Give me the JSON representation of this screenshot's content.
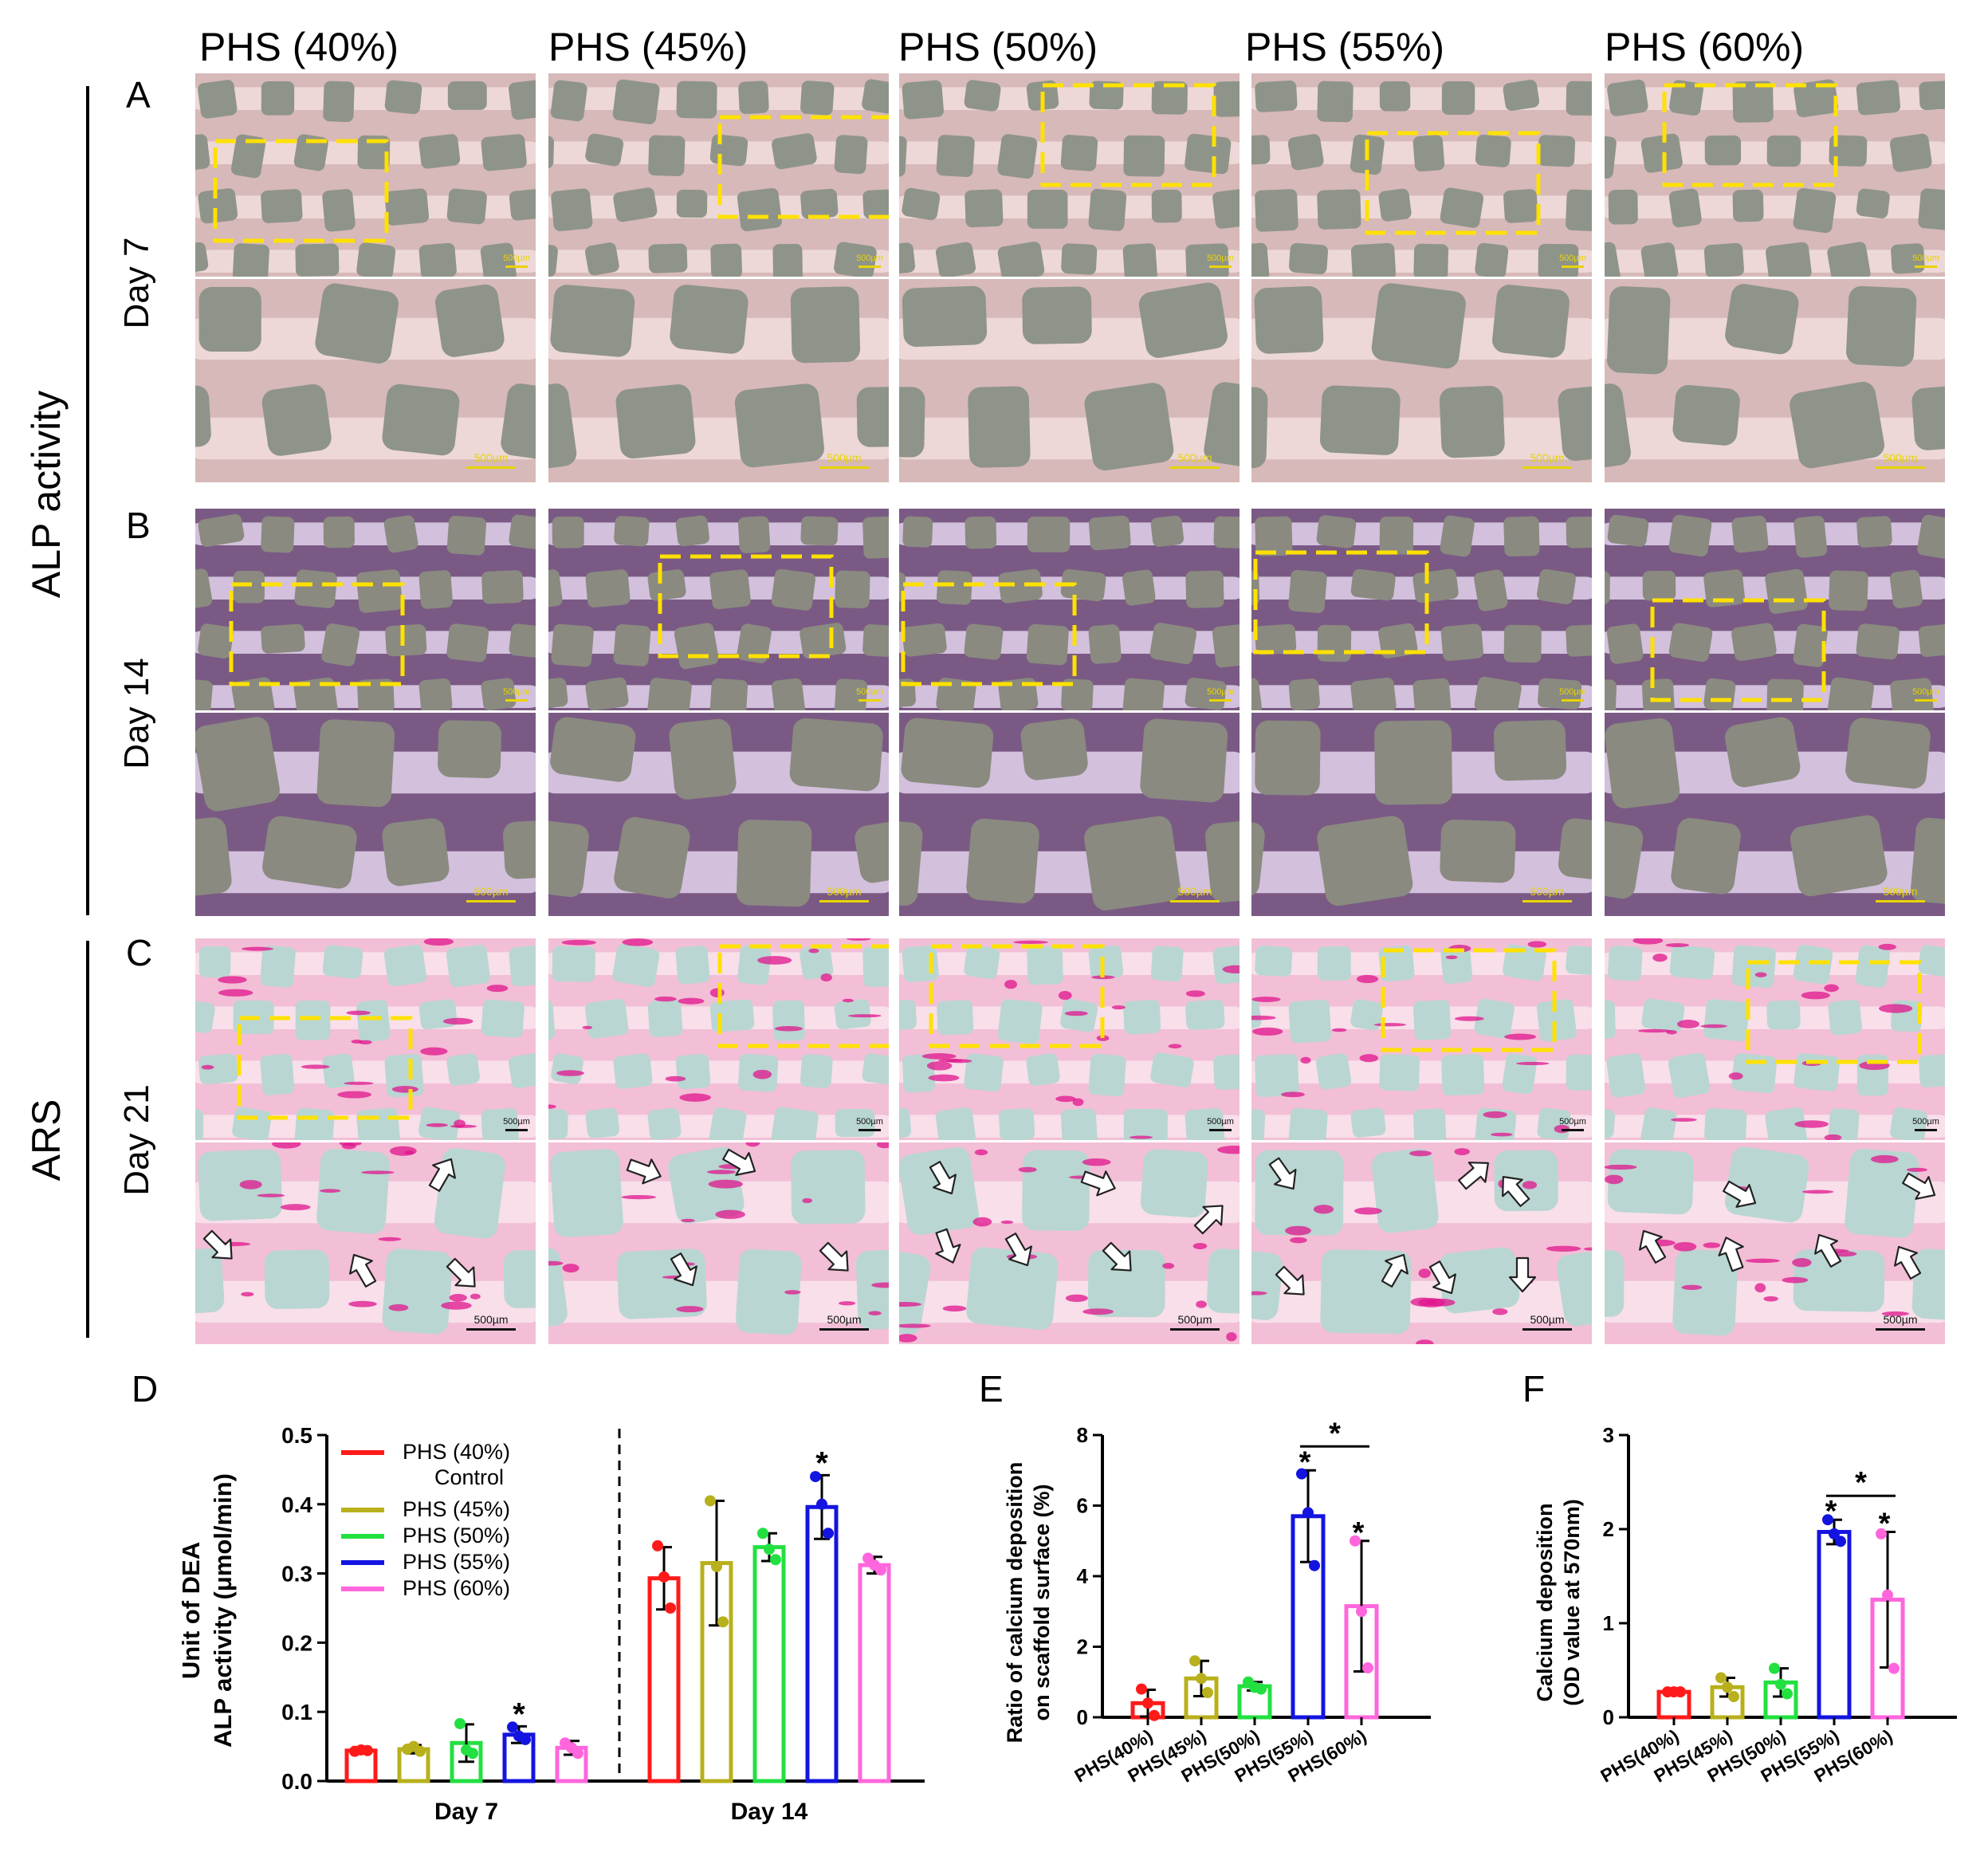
{
  "columns": [
    "PHS (40%)",
    "PHS (45%)",
    "PHS (50%)",
    "PHS (55%)",
    "PHS (60%)"
  ],
  "panels": {
    "A": "A",
    "B": "B",
    "C": "C",
    "D": "D",
    "E": "E",
    "F": "F"
  },
  "rows": {
    "day7": "Day 7",
    "day14": "Day 14",
    "day21": "Day 21"
  },
  "sections": {
    "alp": "ALP activity",
    "ars": "ARS"
  },
  "scale_label": "500µm",
  "colors": {
    "day7_bg": "#d6b9b8",
    "day7_strut": "#efdcda",
    "day7_pore": "#8f948a",
    "day14_bg": "#7a5a84",
    "day14_strut": "#dccbe6",
    "day14_pore": "#8a8a80",
    "ars_bg": "#f2bfd6",
    "ars_strut": "#f8e2ec",
    "ars_pore": "#b9d6d2",
    "ars_stain": "#e0148c",
    "roi": "#ffe100",
    "series": [
      "#ff1a1a",
      "#b8b01c",
      "#22e040",
      "#1414e0",
      "#ff66dd"
    ]
  },
  "chart_data": [
    {
      "type": "bar",
      "panel": "D",
      "ylabel": [
        "Unit of DEA",
        "ALP activity (μmol/min)"
      ],
      "ylim": [
        0,
        0.5
      ],
      "yticks": [
        "0.0",
        "0.1",
        "0.2",
        "0.3",
        "0.4",
        "0.5"
      ],
      "categories": [
        "Day 7",
        "Day 14"
      ],
      "legend": [
        "PHS (40%)",
        "Control",
        "PHS (45%)",
        "PHS (50%)",
        "PHS (55%)",
        "PHS (60%)"
      ],
      "series": [
        {
          "name": "PHS (40%) Control",
          "values": [
            0.044,
            0.293
          ],
          "sd": [
            0.003,
            0.045
          ],
          "points": [
            [
              0.043,
              0.045,
              0.044
            ],
            [
              0.34,
              0.295,
              0.25
            ]
          ]
        },
        {
          "name": "PHS (45%)",
          "values": [
            0.046,
            0.315
          ],
          "sd": [
            0.006,
            0.09
          ],
          "points": [
            [
              0.046,
              0.05,
              0.043
            ],
            [
              0.405,
              0.31,
              0.23
            ]
          ]
        },
        {
          "name": "PHS (50%)",
          "values": [
            0.055,
            0.338
          ],
          "sd": [
            0.027,
            0.02
          ],
          "points": [
            [
              0.083,
              0.045,
              0.04
            ],
            [
              0.358,
              0.335,
              0.32
            ]
          ]
        },
        {
          "name": "PHS (55%)",
          "values": [
            0.067,
            0.396
          ],
          "sd": [
            0.012,
            0.046
          ],
          "points": [
            [
              0.078,
              0.065,
              0.06
            ],
            [
              0.44,
              0.4,
              0.358
            ]
          ]
        },
        {
          "name": "PHS (60%)",
          "values": [
            0.048,
            0.312
          ],
          "sd": [
            0.01,
            0.012
          ],
          "points": [
            [
              0.055,
              0.048,
              0.04
            ],
            [
              0.322,
              0.312,
              0.305
            ]
          ]
        }
      ],
      "significance": [
        {
          "series": "PHS (55%)",
          "category": "Day 7",
          "label": "*"
        },
        {
          "series": "PHS (55%)",
          "category": "Day 14",
          "label": "*"
        }
      ]
    },
    {
      "type": "bar",
      "panel": "E",
      "ylabel": [
        "Ratio of calcium deposition",
        "on scaffold surface (%)"
      ],
      "ylim": [
        0,
        8
      ],
      "yticks": [
        "0",
        "2",
        "4",
        "6",
        "8"
      ],
      "categories": [
        "PHS(40%)",
        "PHS(45%)",
        "PHS(50%)",
        "PHS(55%)",
        "PHS(60%)"
      ],
      "values": [
        0.4,
        1.1,
        0.88,
        5.7,
        3.15
      ],
      "sd": [
        0.38,
        0.5,
        0.12,
        1.3,
        1.85
      ],
      "points": [
        [
          0.8,
          0.4,
          0.05
        ],
        [
          1.6,
          1.1,
          0.7
        ],
        [
          1.0,
          0.85,
          0.8
        ],
        [
          6.9,
          5.8,
          4.3
        ],
        [
          5.0,
          3.0,
          1.4
        ]
      ],
      "significance": [
        {
          "category": "PHS(55%)",
          "label": "*"
        },
        {
          "category": "PHS(60%)",
          "label": "*"
        },
        {
          "between": [
            "PHS(55%)",
            "PHS(60%)"
          ],
          "label": "*"
        }
      ]
    },
    {
      "type": "bar",
      "panel": "F",
      "ylabel": [
        "Calcium deposition",
        "(OD value at 570nm)"
      ],
      "ylim": [
        0,
        3
      ],
      "yticks": [
        "0",
        "1",
        "2",
        "3"
      ],
      "categories": [
        "PHS(40%)",
        "PHS(45%)",
        "PHS(50%)",
        "PHS(55%)",
        "PHS(60%)"
      ],
      "values": [
        0.27,
        0.32,
        0.37,
        1.97,
        1.25
      ],
      "sd": [
        0.02,
        0.1,
        0.15,
        0.13,
        0.72
      ],
      "points": [
        [
          0.27,
          0.27,
          0.27
        ],
        [
          0.42,
          0.32,
          0.22
        ],
        [
          0.52,
          0.35,
          0.25
        ],
        [
          2.1,
          1.95,
          1.87
        ],
        [
          1.95,
          1.3,
          0.52
        ]
      ],
      "significance": [
        {
          "category": "PHS(55%)",
          "label": "*"
        },
        {
          "category": "PHS(60%)",
          "label": "*"
        },
        {
          "between": [
            "PHS(55%)",
            "PHS(60%)"
          ],
          "label": "*"
        }
      ]
    }
  ]
}
